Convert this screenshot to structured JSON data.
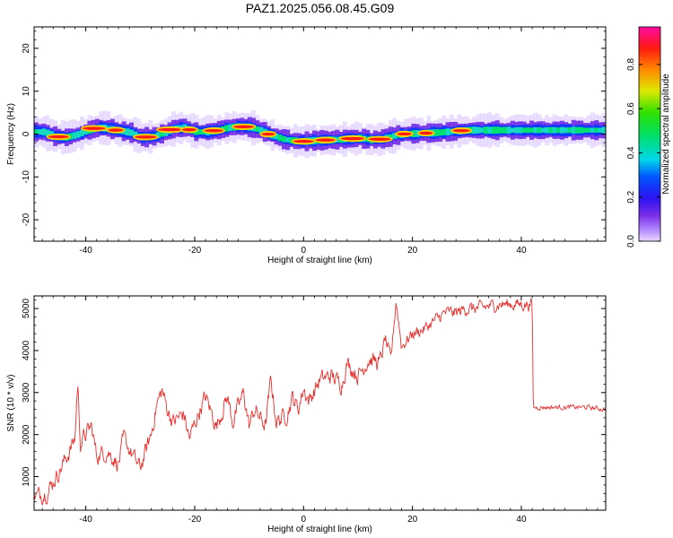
{
  "title": "PAZ1.2025.056.08.45.G09",
  "chart_data": [
    {
      "type": "heatmap",
      "xlabel": "Height of straight line (km)",
      "ylabel": "Frequency (Hz)",
      "xlim": [
        -49.5,
        55.5
      ],
      "ylim": [
        -25,
        25
      ],
      "x_ticks": [
        -40,
        -20,
        0,
        20,
        40
      ],
      "y_ticks": [
        -20,
        -10,
        0,
        10,
        20
      ],
      "grid": false,
      "colorbar": {
        "label": "Normalized spectral amplitude",
        "range": [
          0.0,
          0.97
        ],
        "ticks": [
          0.0,
          0.2,
          0.4,
          0.6,
          0.8
        ],
        "colormap": "rainbow (purple-blue-cyan-green-yellow-red-magenta)"
      },
      "ridge": {
        "x": [
          -48,
          -46,
          -44,
          -42,
          -40,
          -38,
          -36,
          -34,
          -32,
          -30,
          -28,
          -26,
          -24,
          -22,
          -20,
          -18,
          -16,
          -14,
          -12,
          -10,
          -8,
          -6,
          -4,
          -2,
          0,
          2,
          4,
          6,
          8,
          10,
          12,
          14,
          16,
          18,
          20,
          22,
          24,
          26,
          28,
          30,
          35,
          40,
          45,
          50,
          55
        ],
        "y": [
          0.5,
          -0.5,
          -0.8,
          -0.2,
          0.8,
          1.5,
          1.3,
          0.8,
          0.3,
          -0.8,
          -0.6,
          0.2,
          1.3,
          1.5,
          0.5,
          0.5,
          0.9,
          1.5,
          1.8,
          1.6,
          0.8,
          -0.3,
          -1.2,
          -1.6,
          -1.7,
          -1.5,
          -1.4,
          -1.3,
          -1.1,
          -1.0,
          -1.3,
          -1.2,
          -0.5,
          0.0,
          0.1,
          0.2,
          0.3,
          0.5,
          0.7,
          0.9,
          0.9,
          0.9,
          0.9,
          0.9,
          0.9
        ]
      }
    },
    {
      "type": "line",
      "xlabel": "Height of straight line (km)",
      "ylabel": "SNR (10 * v/v)",
      "xlim": [
        -49.5,
        55.5
      ],
      "ylim": [
        200,
        5300
      ],
      "x_ticks": [
        -40,
        -20,
        0,
        20,
        40
      ],
      "y_ticks": [
        1000,
        2000,
        3000,
        4000,
        5000
      ],
      "grid": false,
      "color": "#e8302e",
      "envelope": {
        "x": [
          -49.5,
          -47,
          -45,
          -43,
          -42,
          -41.5,
          -41,
          -39,
          -38,
          -36,
          -34,
          -33,
          -31,
          -30,
          -28,
          -27,
          -26,
          -25,
          -24,
          -22,
          -21,
          -19,
          -18,
          -16,
          -14,
          -13,
          -11,
          -10,
          -9,
          -7,
          -6,
          -5,
          -3,
          -2,
          -1,
          0,
          1,
          3,
          5,
          7,
          8,
          10,
          12,
          14,
          15,
          16,
          17,
          18,
          20,
          22,
          24,
          26,
          28,
          30,
          32,
          34,
          36,
          38,
          40,
          42,
          42.2,
          44,
          46,
          48,
          50,
          52,
          55.5
        ],
        "y": [
          500,
          650,
          1100,
          1600,
          1900,
          3250,
          1800,
          2200,
          1500,
          1600,
          1300,
          1900,
          1400,
          1200,
          2000,
          2700,
          3050,
          2600,
          2300,
          2500,
          1900,
          2600,
          2900,
          2200,
          2900,
          2300,
          3000,
          2200,
          2600,
          2200,
          3300,
          2300,
          2500,
          2900,
          2600,
          3100,
          2800,
          3300,
          3400,
          3200,
          3700,
          3400,
          3800,
          3700,
          4300,
          3700,
          5200,
          4100,
          4400,
          4500,
          4700,
          4900,
          4900,
          5000,
          5000,
          5050,
          5100,
          5100,
          5100,
          5100,
          2650,
          2650,
          2650,
          2650,
          2650,
          2650,
          2600
        ]
      }
    }
  ]
}
